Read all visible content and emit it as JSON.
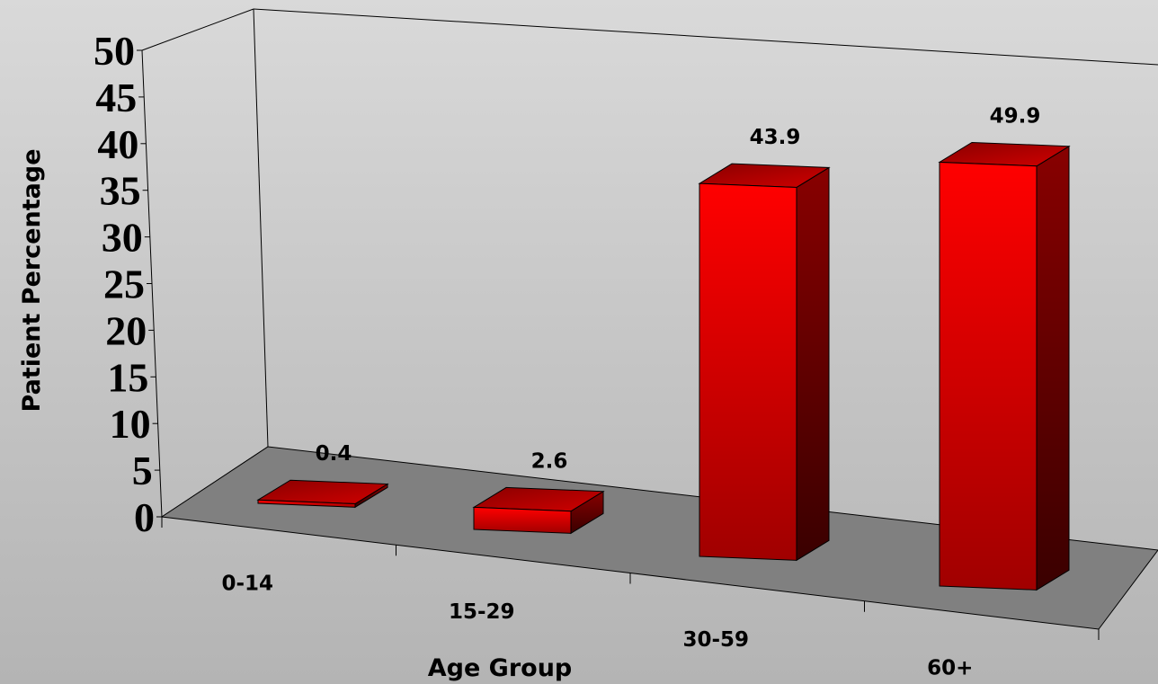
{
  "chart_data": {
    "type": "bar",
    "style": "3d",
    "categories": [
      "0-14",
      "15-29",
      "30-59",
      "60+"
    ],
    "values": [
      0.4,
      2.6,
      43.9,
      49.9
    ],
    "xlabel": "Age Group",
    "ylabel": "Patient Percentage",
    "ylim": [
      0,
      50
    ],
    "yticks": [
      "0",
      "5",
      "10",
      "15",
      "20",
      "25",
      "30",
      "35",
      "40",
      "45",
      "50"
    ],
    "data_labels": [
      "0.4",
      "2.6",
      "43.9",
      "49.9"
    ],
    "grid": false,
    "legend": "none",
    "colors": {
      "bar_front": "#ff0000",
      "bar_front_dark": "#990000",
      "bar_side": "#6a0000",
      "bar_top": "#c00000",
      "floor": "#808080"
    }
  }
}
